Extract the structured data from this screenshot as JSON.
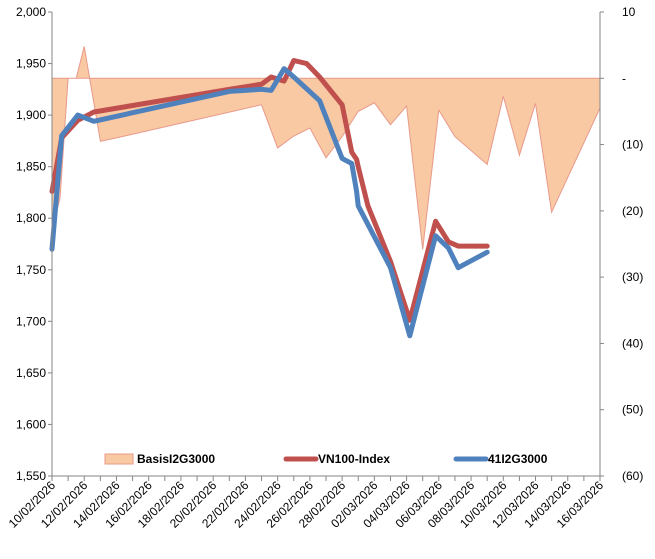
{
  "chart_data": {
    "type": "line",
    "title": "",
    "xlabel": "",
    "ylabel": "",
    "x": [
      "10/02/2026",
      "11/02/2026",
      "12/02/2026",
      "13/02/2026",
      "14/02/2026",
      "15/02/2026",
      "16/02/2026",
      "17/02/2026",
      "18/02/2026",
      "19/02/2026",
      "20/02/2026",
      "21/02/2026",
      "22/02/2026",
      "23/02/2026",
      "24/02/2026",
      "25/02/2026",
      "26/02/2026",
      "27/02/2026",
      "28/02/2026",
      "01/03/2026",
      "02/03/2026",
      "03/03/2026",
      "04/03/2026",
      "05/03/2026",
      "06/03/2026",
      "07/03/2026",
      "08/03/2026",
      "09/03/2026",
      "10/03/2026",
      "11/03/2026",
      "12/03/2026",
      "13/03/2026",
      "14/03/2026",
      "15/03/2026",
      "16/03/2026"
    ],
    "x_tick_labels": [
      "10/02/2026",
      "12/02/2026",
      "14/02/2026",
      "16/02/2026",
      "18/02/2026",
      "20/02/2026",
      "22/02/2026",
      "24/02/2026",
      "26/02/2026",
      "28/02/2026",
      "02/03/2026",
      "04/03/2026",
      "06/03/2026",
      "08/03/2026",
      "10/03/2026",
      "12/03/2026",
      "14/03/2026",
      "16/03/2026"
    ],
    "y_left": {
      "ylim": [
        1550,
        2000
      ],
      "ticks": [
        "1,550",
        "1,600",
        "1,650",
        "1,700",
        "1,750",
        "1,800",
        "1,850",
        "1,900",
        "1,950",
        "2,000"
      ]
    },
    "y_right": {
      "ylim": [
        -60,
        10
      ],
      "ticks": [
        "10",
        "-",
        "(10)",
        "(20)",
        "(30)",
        "(40)",
        "(50)",
        "(60)"
      ]
    },
    "grid": false,
    "legend_position": "bottom",
    "series": [
      {
        "name": "BasisI2G3000",
        "type": "area",
        "axis": "right",
        "color": "#f9c9a4",
        "edge_color": "#e8998a",
        "points": [
          [
            "10/02/2026",
            -53
          ],
          [
            "10/02/2026",
            -23
          ],
          [
            "10/02/2026.5",
            -18
          ],
          [
            "11/02/2026",
            0
          ],
          [
            "11/02/2026.5",
            0
          ],
          [
            "12/02/2026",
            4.8
          ],
          [
            "13/02/2026",
            -9.5
          ],
          [
            "14/02/2026",
            -9
          ],
          [
            "23/02/2026",
            -4
          ],
          [
            "24/02/2026",
            -10.5
          ],
          [
            "25/02/2026",
            -8.7
          ],
          [
            "26/02/2026",
            -7.5
          ],
          [
            "27/02/2026",
            -12
          ],
          [
            "28/02/2026",
            -8.8
          ],
          [
            "01/03/2026",
            -5
          ],
          [
            "02/03/2026",
            -3.7
          ],
          [
            "03/03/2026",
            -7
          ],
          [
            "04/03/2026",
            -4.2
          ],
          [
            "05/03/2026",
            -25.8
          ],
          [
            "06/03/2026",
            -4.8
          ],
          [
            "07/03/2026",
            -8.8
          ],
          [
            "09/03/2026",
            -13
          ],
          [
            "10/03/2026",
            -2.7
          ],
          [
            "11/03/2026",
            -11.6
          ],
          [
            "12/03/2026",
            -3.8
          ],
          [
            "13/03/2026",
            -20.2
          ],
          [
            "16/03/2026",
            -4.5
          ]
        ],
        "baseline": 0
      },
      {
        "name": "VN100-Index",
        "type": "line",
        "axis": "left",
        "color": "#c0504d",
        "points": [
          [
            "10/02/2026",
            1826
          ],
          [
            "10/02/2026.6",
            1878
          ],
          [
            "11/02/2026.6",
            1895
          ],
          [
            "12/02/2026.6",
            1903
          ],
          [
            "21/02/2026",
            1925
          ],
          [
            "23/02/2026",
            1930
          ],
          [
            "23/02/2026.6",
            1937
          ],
          [
            "24/02/2026.4",
            1933
          ],
          [
            "25/02/2026",
            1953
          ],
          [
            "25/02/2026.8",
            1950
          ],
          [
            "26/02/2026.6",
            1937
          ],
          [
            "28/02/2026",
            1910
          ],
          [
            "28/02/2026.6",
            1864
          ],
          [
            "29/02/2026.4",
            1857
          ],
          [
            "01/03/2026",
            1850
          ],
          [
            "01/03/2026.6",
            1812
          ],
          [
            "03/03/2026",
            1758
          ],
          [
            "04/03/2026.2",
            1701
          ],
          [
            "05/03/2026.8",
            1797
          ],
          [
            "06/03/2026.6",
            1777
          ],
          [
            "07/03/2026.2",
            1773
          ],
          [
            "09/03/2026",
            1773
          ]
        ],
        "values_note": ""
      },
      {
        "name": "41I2G3000",
        "type": "line",
        "axis": "left",
        "color": "#4f81bd",
        "points": [
          [
            "10/02/2026",
            1770
          ],
          [
            "10/02/2026.6",
            1880
          ],
          [
            "11/02/2026.6",
            1900
          ],
          [
            "12/02/2026.6",
            1894
          ],
          [
            "21/02/2026",
            1923
          ],
          [
            "23/02/2026",
            1925
          ],
          [
            "23/02/2026.6",
            1924
          ],
          [
            "24/02/2026.4",
            1945
          ],
          [
            "25/02/2026",
            1937
          ],
          [
            "26/02/2026.6",
            1914
          ],
          [
            "28/02/2026",
            1858
          ],
          [
            "28/02/2026.6",
            1853
          ],
          [
            "29/02/2026.4",
            1826
          ],
          [
            "01/03/2026",
            1812
          ],
          [
            "03/03/2026",
            1752
          ],
          [
            "04/03/2026.2",
            1686
          ],
          [
            "05/03/2026.8",
            1783
          ],
          [
            "06/03/2026.6",
            1771
          ],
          [
            "07/03/2026.2",
            1752
          ],
          [
            "09/03/2026",
            1767
          ]
        ]
      }
    ]
  }
}
